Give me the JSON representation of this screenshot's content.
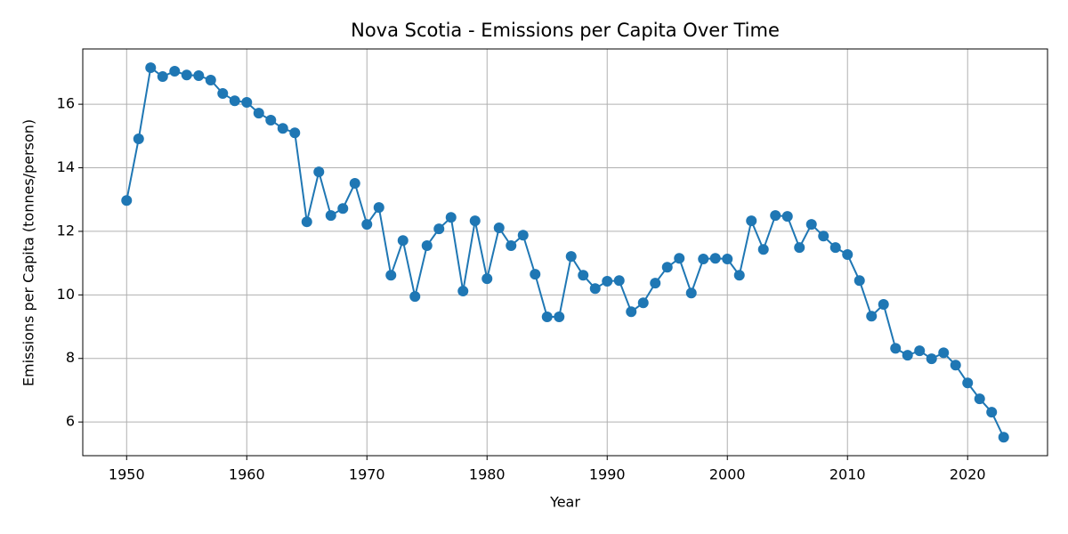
{
  "chart_data": {
    "type": "line",
    "title": "Nova Scotia - Emissions per Capita Over Time",
    "x_label": "Year",
    "y_label": "Emissions per Capita (tonnes/person)",
    "x": [
      1950,
      1951,
      1952,
      1953,
      1954,
      1955,
      1956,
      1957,
      1958,
      1959,
      1960,
      1961,
      1962,
      1963,
      1964,
      1965,
      1966,
      1967,
      1968,
      1969,
      1970,
      1971,
      1972,
      1973,
      1974,
      1975,
      1976,
      1977,
      1978,
      1979,
      1980,
      1981,
      1982,
      1983,
      1984,
      1985,
      1986,
      1987,
      1988,
      1989,
      1990,
      1991,
      1992,
      1993,
      1994,
      1995,
      1996,
      1997,
      1998,
      1999,
      2000,
      2001,
      2002,
      2003,
      2004,
      2005,
      2006,
      2007,
      2008,
      2009,
      2010,
      2011,
      2012,
      2013,
      2014,
      2015,
      2016,
      2017,
      2018,
      2019,
      2020,
      2021,
      2022,
      2023
    ],
    "values": [
      12.97,
      14.91,
      17.15,
      16.87,
      17.04,
      16.92,
      16.9,
      16.76,
      16.34,
      16.11,
      16.06,
      15.72,
      15.5,
      15.24,
      15.1,
      12.3,
      13.87,
      12.5,
      12.72,
      13.51,
      12.22,
      12.75,
      10.62,
      11.71,
      9.95,
      11.55,
      12.08,
      12.44,
      10.12,
      12.33,
      10.51,
      12.11,
      11.55,
      11.88,
      10.65,
      9.31,
      9.31,
      11.21,
      10.62,
      10.2,
      10.43,
      10.45,
      9.47,
      9.75,
      10.37,
      10.87,
      11.15,
      10.06,
      11.13,
      11.15,
      11.13,
      10.62,
      12.33,
      11.43,
      12.5,
      12.47,
      11.49,
      12.22,
      11.85,
      11.49,
      11.27,
      10.45,
      9.33,
      9.7,
      8.32,
      8.1,
      8.24,
      7.99,
      8.18,
      7.79,
      7.23,
      6.73,
      6.31,
      5.52
    ],
    "color": "#1f77b4",
    "xlim": [
      1946.35,
      2026.65
    ],
    "ylim": [
      4.94,
      17.74
    ],
    "xticks": [
      1950,
      1960,
      1970,
      1980,
      1990,
      2000,
      2010,
      2020
    ],
    "yticks": [
      6,
      8,
      10,
      12,
      14,
      16
    ],
    "grid": true
  }
}
